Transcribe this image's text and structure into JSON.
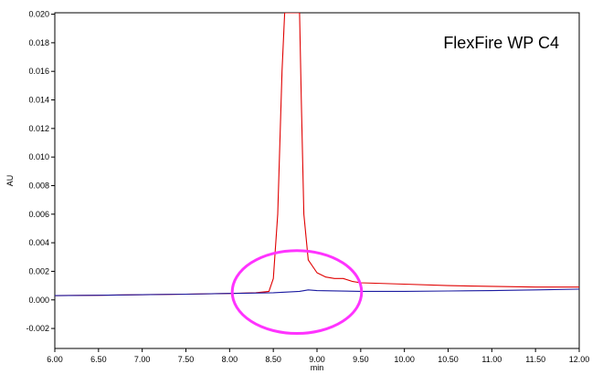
{
  "chart_data": {
    "type": "line",
    "title": "FlexFire WP C4",
    "xlabel": "min",
    "ylabel": "AU",
    "xlim": [
      6.0,
      12.0
    ],
    "ylim": [
      -0.0034,
      0.0201
    ],
    "grid": false,
    "legend": "none",
    "x_ticks": [
      "6.00",
      "6.50",
      "7.00",
      "7.50",
      "8.00",
      "8.50",
      "9.00",
      "9.50",
      "10.00",
      "10.50",
      "11.00",
      "11.50",
      "12.00"
    ],
    "y_ticks": [
      "-0.002",
      "0.000",
      "0.002",
      "0.004",
      "0.006",
      "0.008",
      "0.010",
      "0.012",
      "0.014",
      "0.016",
      "0.018",
      "0.020"
    ],
    "series": [
      {
        "color": "#e00000",
        "x": [
          6.0,
          6.5,
          7.0,
          7.5,
          8.0,
          8.3,
          8.45,
          8.5,
          8.55,
          8.6,
          8.63,
          8.66,
          8.7,
          8.72,
          8.75,
          8.8,
          8.82,
          8.85,
          8.9,
          9.0,
          9.1,
          9.2,
          9.3,
          9.4,
          9.5,
          10.0,
          10.5,
          11.0,
          11.5,
          12.0
        ],
        "y": [
          0.0003,
          0.00032,
          0.00036,
          0.0004,
          0.00045,
          0.0005,
          0.0006,
          0.0015,
          0.006,
          0.016,
          0.0201,
          0.0201,
          0.0201,
          0.0201,
          0.0201,
          0.0201,
          0.014,
          0.006,
          0.0028,
          0.0019,
          0.0016,
          0.0015,
          0.0015,
          0.0013,
          0.0012,
          0.0011,
          0.001,
          0.00095,
          0.0009,
          0.0009
        ]
      },
      {
        "color": "#1a1aa0",
        "x": [
          6.0,
          6.5,
          7.0,
          7.5,
          8.0,
          8.5,
          8.8,
          8.9,
          9.0,
          9.5,
          10.0,
          10.5,
          11.0,
          11.5,
          12.0
        ],
        "y": [
          0.0003,
          0.00032,
          0.00036,
          0.0004,
          0.00045,
          0.0005,
          0.0006,
          0.0007,
          0.00065,
          0.0006,
          0.0006,
          0.00062,
          0.00065,
          0.0007,
          0.00075
        ]
      }
    ],
    "annotations": [
      {
        "type": "ellipse",
        "color": "#ff33ff",
        "cx": 8.77,
        "cy": 0.00055,
        "rx": 0.74,
        "ry": 0.0029
      }
    ]
  }
}
